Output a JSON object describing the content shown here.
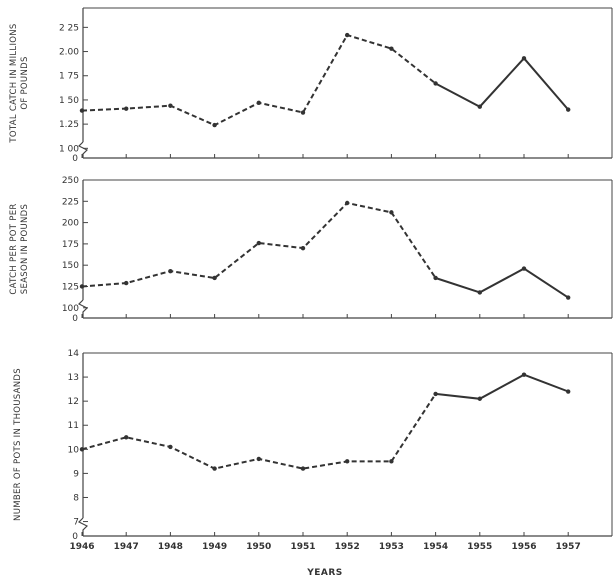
{
  "chart_data": [
    {
      "type": "line",
      "ylabel": "TOTAL CATCH IN MILLIONS OF POUNDS",
      "ylabel_lines": [
        "TOTAL CATCH IN MILLIONS",
        "OF POUNDS"
      ],
      "x": [
        1946,
        1947,
        1948,
        1949,
        1950,
        1951,
        1952,
        1953,
        1954,
        1955,
        1956,
        1957
      ],
      "values": [
        1.39,
        1.41,
        1.44,
        1.24,
        1.47,
        1.37,
        2.17,
        2.03,
        1.67,
        1.43,
        1.93,
        1.4
      ],
      "dashed_until": 1954,
      "ylim": [
        0.9,
        2.45
      ],
      "yticks": [
        1.0,
        1.25,
        1.5,
        1.75,
        2.0,
        2.25
      ],
      "ytick_labels": [
        "1 00",
        "1.25",
        "1 50",
        "1 75",
        "2.00",
        "2 25"
      ],
      "zero_label": "0",
      "axis_break": true
    },
    {
      "type": "line",
      "ylabel": "CATCH PER POT PER SEASON IN POUNDS",
      "ylabel_lines": [
        "CATCH PER POT PER",
        "SEASON IN POUNDS"
      ],
      "x": [
        1946,
        1947,
        1948,
        1949,
        1950,
        1951,
        1952,
        1953,
        1954,
        1955,
        1956,
        1957
      ],
      "values": [
        125,
        129,
        143,
        135,
        176,
        170,
        223,
        212,
        135,
        118,
        146,
        112
      ],
      "dashed_until": 1954,
      "ylim": [
        88,
        250
      ],
      "yticks": [
        100,
        125,
        150,
        175,
        200,
        225,
        250
      ],
      "ytick_labels": [
        "100",
        "125",
        "150",
        "175",
        "200",
        "225",
        "250"
      ],
      "zero_label": "0",
      "axis_break": true
    },
    {
      "type": "line",
      "ylabel": "NUMBER OF POTS IN THOUSANDS",
      "ylabel_lines": [
        "NUMBER OF POTS IN THOUSANDS"
      ],
      "x": [
        1946,
        1947,
        1948,
        1949,
        1950,
        1951,
        1952,
        1953,
        1954,
        1955,
        1956,
        1957
      ],
      "values": [
        10.0,
        10.5,
        10.1,
        9.2,
        9.6,
        9.2,
        9.5,
        9.5,
        12.3,
        12.1,
        13.1,
        12.4
      ],
      "dashed_until": 1954,
      "ylim": [
        6.4,
        14.0
      ],
      "yticks": [
        7,
        8,
        9,
        10,
        11,
        12,
        13,
        14
      ],
      "ytick_labels": [
        "7",
        "8",
        "9",
        "10",
        "11",
        "12",
        "13",
        "14"
      ],
      "zero_label": "0",
      "axis_break": true,
      "xlabel": "YEARS",
      "xtick_labels": [
        "1946",
        "1947",
        "1948",
        "1949",
        "1950",
        "1951",
        "1952",
        "1953",
        "1954",
        "1955",
        "1956",
        "1957"
      ]
    }
  ],
  "colors": {
    "line": "#333333",
    "frame": "#444444",
    "background": "#ffffff"
  }
}
